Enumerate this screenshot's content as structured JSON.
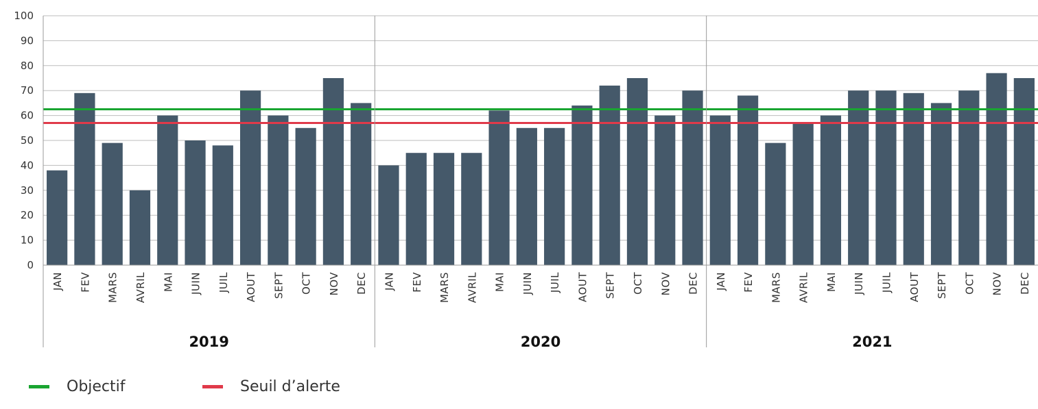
{
  "chart_data": {
    "type": "bar",
    "groups": [
      {
        "label": "2019",
        "categories": [
          "JAN",
          "FEV",
          "MARS",
          "AVRIL",
          "MAI",
          "JUIN",
          "JUIL",
          "AOUT",
          "SEPT",
          "OCT",
          "NOV",
          "DEC"
        ],
        "values": [
          38,
          69,
          49,
          30,
          60,
          50,
          48,
          70,
          60,
          55,
          75,
          65
        ]
      },
      {
        "label": "2020",
        "categories": [
          "JAN",
          "FEV",
          "MARS",
          "AVRIL",
          "MAI",
          "JUIN",
          "JUIL",
          "AOUT",
          "SEPT",
          "OCT",
          "NOV",
          "DEC"
        ],
        "values": [
          40,
          45,
          45,
          45,
          62,
          55,
          55,
          64,
          72,
          75,
          60,
          70
        ]
      },
      {
        "label": "2021",
        "categories": [
          "JAN",
          "FEV",
          "MARS",
          "AVRIL",
          "MAI",
          "JUIN",
          "JUIL",
          "AOUT",
          "SEPT",
          "OCT",
          "NOV",
          "DEC"
        ],
        "values": [
          60,
          68,
          49,
          57,
          60,
          70,
          70,
          69,
          65,
          70,
          77,
          75
        ]
      }
    ],
    "ylim": [
      0,
      100
    ],
    "yticks": [
      0,
      10,
      20,
      30,
      40,
      50,
      60,
      70,
      80,
      90,
      100
    ],
    "grid": true,
    "bar_color": "#45596a",
    "reference_lines": [
      {
        "name": "Objectif",
        "value": 62.5,
        "color": "#1aa531"
      },
      {
        "name": "Seuil d’alerte",
        "value": 57,
        "color": "#e03a4a"
      }
    ],
    "legend": "bottom-left"
  },
  "legend": {
    "objectif": "Objectif",
    "seuil": "Seuil d’alerte"
  }
}
